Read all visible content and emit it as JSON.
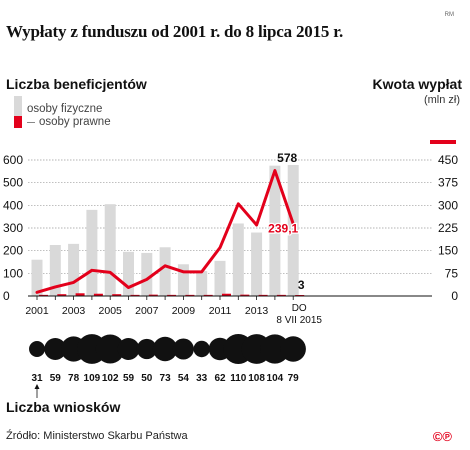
{
  "header": {
    "title": "Wypłaty z funduszu od 2001 r. do 8 lipca 2015 r.",
    "watermark": "RM"
  },
  "legend": {
    "left_axis_title": "Liczba beneficjentów",
    "individuals": "osoby fizyczne",
    "legal_entities": "osoby prawne",
    "right_axis_title": "Kwota wypłat",
    "right_axis_unit": "(mln zł)"
  },
  "colors": {
    "individuals_bar": "#d9d9d9",
    "legal_bar": "#e3001b",
    "amount_line": "#e3001b",
    "bubble": "#111111"
  },
  "chart_data": {
    "type": "bar",
    "categories": [
      "2001",
      "2002",
      "2003",
      "2004",
      "2005",
      "2006",
      "2007",
      "2008",
      "2009",
      "2010",
      "2011",
      "2012",
      "2013",
      "2014",
      "DO 8 VII 2015"
    ],
    "x_tick_labels": [
      "2001",
      "2003",
      "2005",
      "2007",
      "2009",
      "2011",
      "2013",
      "DO",
      "8 VII 2015"
    ],
    "series": [
      {
        "name": "osoby fizyczne",
        "axis": "left",
        "type": "bar",
        "values": [
          160,
          225,
          230,
          380,
          405,
          195,
          190,
          215,
          140,
          110,
          155,
          320,
          280,
          575,
          578
        ]
      },
      {
        "name": "osoby prawne",
        "axis": "left",
        "type": "bar",
        "values": [
          5,
          8,
          12,
          10,
          8,
          5,
          6,
          5,
          5,
          5,
          10,
          6,
          5,
          5,
          3
        ]
      },
      {
        "name": "Kwota wypłat",
        "axis": "right",
        "type": "line",
        "values": [
          12,
          30,
          45,
          85,
          78,
          28,
          55,
          100,
          80,
          80,
          160,
          305,
          235,
          415,
          239.1
        ]
      }
    ],
    "left_axis": {
      "ylim": [
        0,
        600
      ],
      "ticks": [
        0,
        100,
        200,
        300,
        400,
        500,
        600
      ]
    },
    "right_axis": {
      "ylim": [
        0,
        450
      ],
      "ticks": [
        0,
        75,
        150,
        225,
        300,
        375,
        450
      ]
    },
    "data_labels": [
      {
        "series": "osoby fizyczne",
        "category": "DO 8 VII 2015",
        "text": "578"
      },
      {
        "series": "Kwota wypłat",
        "category": "DO 8 VII 2015",
        "text": "239,1"
      },
      {
        "series": "osoby prawne",
        "category": "DO 8 VII 2015",
        "text": "3"
      }
    ],
    "applications": {
      "title": "Liczba wniosków",
      "values": [
        31,
        59,
        78,
        109,
        102,
        59,
        50,
        73,
        54,
        33,
        62,
        110,
        108,
        104,
        79
      ]
    }
  },
  "footer": {
    "source": "Źródło: Ministerstwo Skarbu Państwa",
    "copyright": "©℗"
  }
}
